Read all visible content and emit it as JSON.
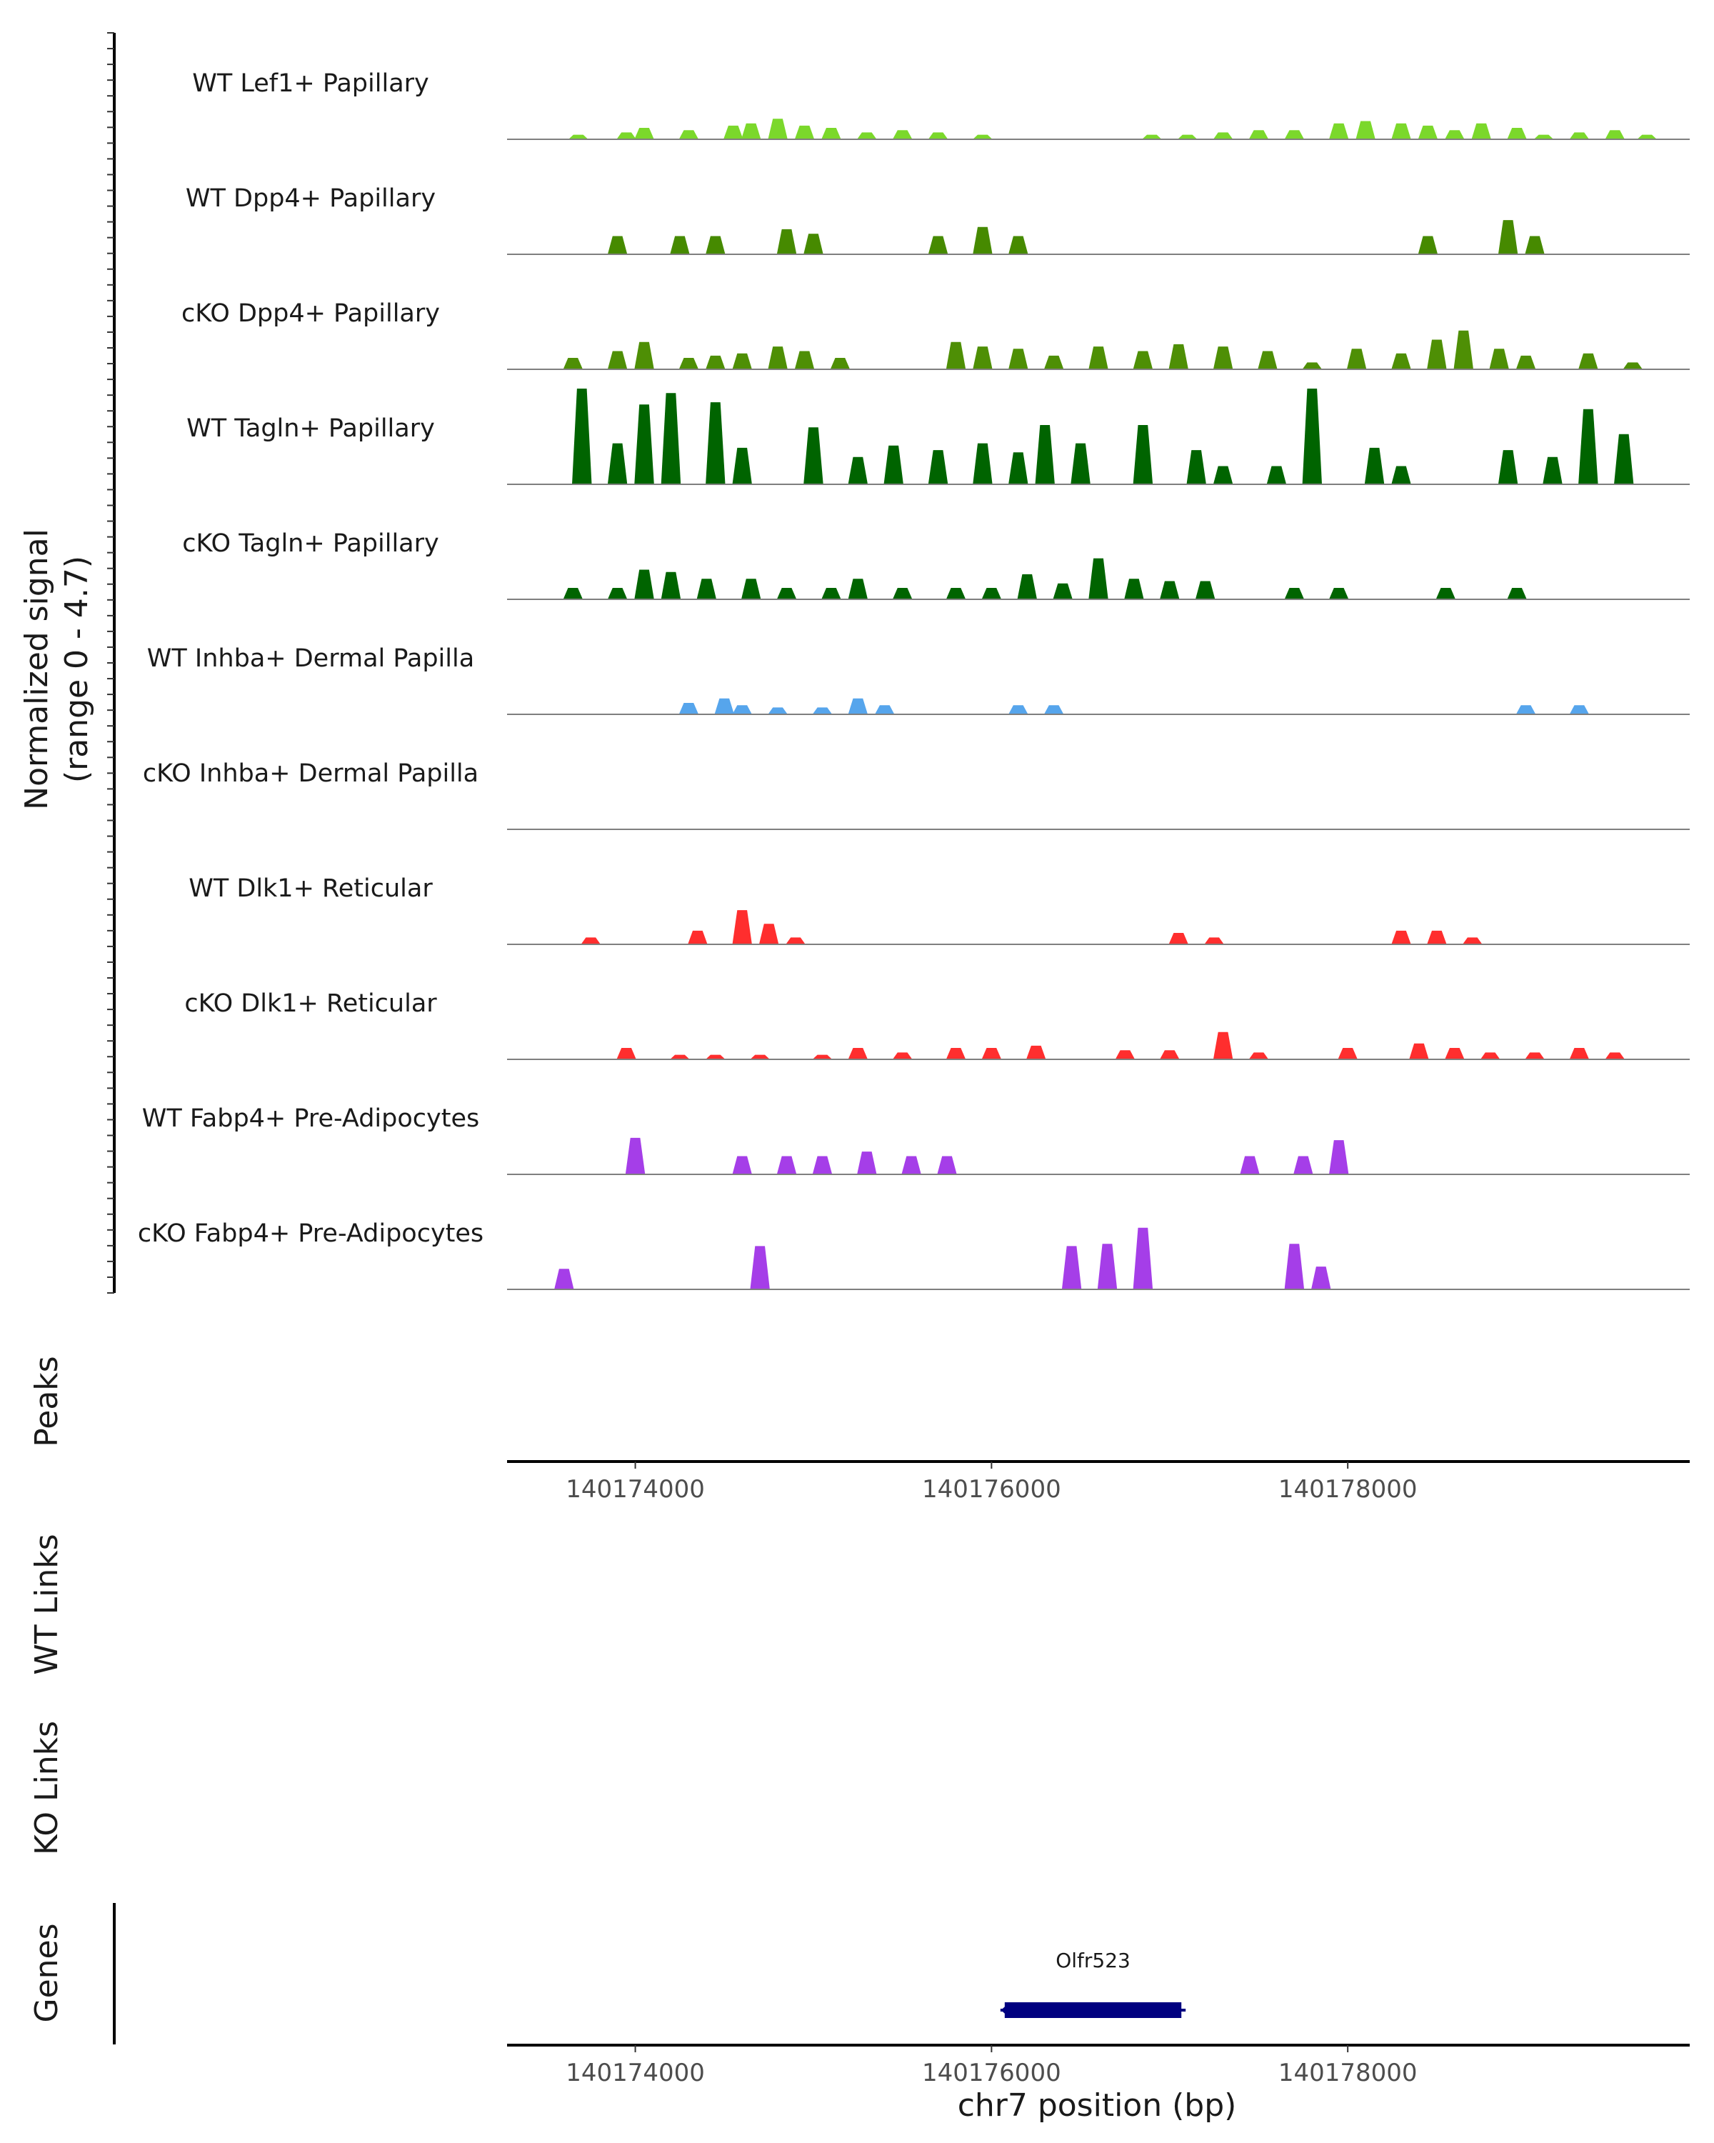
{
  "chart_data": {
    "type": "area",
    "title": "",
    "ylabel": "Normalized signal",
    "ylabel_range": "(range 0 - 4.7)",
    "ylim": [
      0,
      4.7
    ],
    "xlim": [
      140173280,
      140179920
    ],
    "xlabel": "chr7 position (bp)",
    "x_ticks": [
      "140174000",
      "140176000",
      "140178000"
    ],
    "x_tick_values": [
      140174000,
      140176000,
      140178000
    ],
    "tracks": [
      {
        "name": "WT Lef1+ Papillary",
        "color": "#7bd82b",
        "bins": [
          [
            140173680,
            0.2
          ],
          [
            140173950,
            0.3
          ],
          [
            140174050,
            0.5
          ],
          [
            140174300,
            0.4
          ],
          [
            140174550,
            0.6
          ],
          [
            140174650,
            0.7
          ],
          [
            140174800,
            0.9
          ],
          [
            140174950,
            0.6
          ],
          [
            140175100,
            0.5
          ],
          [
            140175300,
            0.3
          ],
          [
            140175500,
            0.4
          ],
          [
            140175700,
            0.3
          ],
          [
            140175950,
            0.2
          ],
          [
            140176900,
            0.2
          ],
          [
            140177100,
            0.2
          ],
          [
            140177300,
            0.3
          ],
          [
            140177500,
            0.4
          ],
          [
            140177700,
            0.4
          ],
          [
            140177950,
            0.7
          ],
          [
            140178100,
            0.8
          ],
          [
            140178300,
            0.7
          ],
          [
            140178450,
            0.6
          ],
          [
            140178600,
            0.4
          ],
          [
            140178750,
            0.7
          ],
          [
            140178950,
            0.5
          ],
          [
            140179100,
            0.2
          ],
          [
            140179300,
            0.3
          ],
          [
            140179500,
            0.4
          ],
          [
            140179680,
            0.2
          ]
        ]
      },
      {
        "name": "WT Dpp4+ Papillary",
        "color": "#468a00",
        "bins": [
          [
            140173900,
            0.8
          ],
          [
            140174250,
            0.8
          ],
          [
            140174450,
            0.8
          ],
          [
            140174850,
            1.1
          ],
          [
            140175000,
            0.9
          ],
          [
            140175700,
            0.8
          ],
          [
            140175950,
            1.2
          ],
          [
            140176150,
            0.8
          ],
          [
            140178450,
            0.8
          ],
          [
            140178900,
            1.5
          ],
          [
            140179050,
            0.8
          ]
        ]
      },
      {
        "name": "cKO Dpp4+ Papillary",
        "color": "#4e8f05",
        "bins": [
          [
            140173650,
            0.5
          ],
          [
            140173900,
            0.8
          ],
          [
            140174050,
            1.2
          ],
          [
            140174300,
            0.5
          ],
          [
            140174450,
            0.6
          ],
          [
            140174600,
            0.7
          ],
          [
            140174800,
            1.0
          ],
          [
            140174950,
            0.8
          ],
          [
            140175150,
            0.5
          ],
          [
            140175800,
            1.2
          ],
          [
            140175950,
            1.0
          ],
          [
            140176150,
            0.9
          ],
          [
            140176350,
            0.6
          ],
          [
            140176600,
            1.0
          ],
          [
            140176850,
            0.8
          ],
          [
            140177050,
            1.1
          ],
          [
            140177300,
            1.0
          ],
          [
            140177550,
            0.8
          ],
          [
            140177800,
            0.3
          ],
          [
            140178050,
            0.9
          ],
          [
            140178300,
            0.7
          ],
          [
            140178500,
            1.3
          ],
          [
            140178650,
            1.7
          ],
          [
            140178850,
            0.9
          ],
          [
            140179000,
            0.6
          ],
          [
            140179350,
            0.7
          ],
          [
            140179600,
            0.3
          ]
        ]
      },
      {
        "name": "WT Tagln+ Papillary",
        "color": "#006400",
        "bins": [
          [
            140173700,
            4.2
          ],
          [
            140173900,
            1.8
          ],
          [
            140174050,
            3.5
          ],
          [
            140174200,
            4.0
          ],
          [
            140174450,
            3.6
          ],
          [
            140174600,
            1.6
          ],
          [
            140175000,
            2.5
          ],
          [
            140175250,
            1.2
          ],
          [
            140175450,
            1.7
          ],
          [
            140175700,
            1.5
          ],
          [
            140175950,
            1.8
          ],
          [
            140176150,
            1.4
          ],
          [
            140176300,
            2.6
          ],
          [
            140176500,
            1.8
          ],
          [
            140176850,
            2.6
          ],
          [
            140177150,
            1.5
          ],
          [
            140177300,
            0.8
          ],
          [
            140177600,
            0.8
          ],
          [
            140177800,
            4.2
          ],
          [
            140178150,
            1.6
          ],
          [
            140178300,
            0.8
          ],
          [
            140178900,
            1.5
          ],
          [
            140179150,
            1.2
          ],
          [
            140179350,
            3.3
          ],
          [
            140179550,
            2.2
          ]
        ]
      },
      {
        "name": "cKO Tagln+ Papillary",
        "color": "#006400",
        "bins": [
          [
            140173650,
            0.5
          ],
          [
            140173900,
            0.5
          ],
          [
            140174050,
            1.3
          ],
          [
            140174200,
            1.2
          ],
          [
            140174400,
            0.9
          ],
          [
            140174650,
            0.9
          ],
          [
            140174850,
            0.5
          ],
          [
            140175100,
            0.5
          ],
          [
            140175250,
            0.9
          ],
          [
            140175500,
            0.5
          ],
          [
            140175800,
            0.5
          ],
          [
            140176000,
            0.5
          ],
          [
            140176200,
            1.1
          ],
          [
            140176400,
            0.7
          ],
          [
            140176600,
            1.8
          ],
          [
            140176800,
            0.9
          ],
          [
            140177000,
            0.8
          ],
          [
            140177200,
            0.8
          ],
          [
            140177700,
            0.5
          ],
          [
            140177950,
            0.5
          ],
          [
            140178550,
            0.5
          ],
          [
            140178950,
            0.5
          ]
        ]
      },
      {
        "name": "WT Inhba+ Dermal Papilla",
        "color": "#56a5ec",
        "bins": [
          [
            140174300,
            0.5
          ],
          [
            140174500,
            0.7
          ],
          [
            140174600,
            0.4
          ],
          [
            140174800,
            0.3
          ],
          [
            140175050,
            0.3
          ],
          [
            140175250,
            0.7
          ],
          [
            140175400,
            0.4
          ],
          [
            140176150,
            0.4
          ],
          [
            140176350,
            0.4
          ],
          [
            140179000,
            0.4
          ],
          [
            140179300,
            0.4
          ]
        ]
      },
      {
        "name": "cKO Inhba+ Dermal Papilla",
        "color": "#56a5ec",
        "bins": []
      },
      {
        "name": "WT Dlk1+ Reticular",
        "color": "#ff2e2e",
        "bins": [
          [
            140173750,
            0.3
          ],
          [
            140174350,
            0.6
          ],
          [
            140174600,
            1.5
          ],
          [
            140174750,
            0.9
          ],
          [
            140174900,
            0.3
          ],
          [
            140177050,
            0.5
          ],
          [
            140177250,
            0.3
          ],
          [
            140178300,
            0.6
          ],
          [
            140178500,
            0.6
          ],
          [
            140178700,
            0.3
          ]
        ]
      },
      {
        "name": "cKO Dlk1+ Reticular",
        "color": "#ff2e2e",
        "bins": [
          [
            140173950,
            0.5
          ],
          [
            140174250,
            0.2
          ],
          [
            140174450,
            0.2
          ],
          [
            140174700,
            0.2
          ],
          [
            140175050,
            0.2
          ],
          [
            140175250,
            0.5
          ],
          [
            140175500,
            0.3
          ],
          [
            140175800,
            0.5
          ],
          [
            140176000,
            0.5
          ],
          [
            140176250,
            0.6
          ],
          [
            140176750,
            0.4
          ],
          [
            140177000,
            0.4
          ],
          [
            140177300,
            1.2
          ],
          [
            140177500,
            0.3
          ],
          [
            140178000,
            0.5
          ],
          [
            140178400,
            0.7
          ],
          [
            140178600,
            0.5
          ],
          [
            140178800,
            0.3
          ],
          [
            140179050,
            0.3
          ],
          [
            140179300,
            0.5
          ],
          [
            140179500,
            0.3
          ]
        ]
      },
      {
        "name": "WT Fabp4+ Pre-Adipocytes",
        "color": "#a53ee8",
        "bins": [
          [
            140174000,
            1.6
          ],
          [
            140174600,
            0.8
          ],
          [
            140174850,
            0.8
          ],
          [
            140175050,
            0.8
          ],
          [
            140175300,
            1.0
          ],
          [
            140175550,
            0.8
          ],
          [
            140175750,
            0.8
          ],
          [
            140177450,
            0.8
          ],
          [
            140177750,
            0.8
          ],
          [
            140177950,
            1.5
          ]
        ]
      },
      {
        "name": "cKO Fabp4+ Pre-Adipocytes",
        "color": "#a53ee8",
        "bins": [
          [
            140173600,
            0.9
          ],
          [
            140174700,
            1.9
          ],
          [
            140176450,
            1.9
          ],
          [
            140176650,
            2.0
          ],
          [
            140176850,
            2.7
          ],
          [
            140177700,
            2.0
          ],
          [
            140177850,
            1.0
          ]
        ]
      }
    ],
    "side_labels": {
      "peaks": "Peaks",
      "wt_links": "WT Links",
      "ko_links": "KO Links",
      "genes": "Genes"
    },
    "genes": [
      {
        "name": "Olfr523",
        "start": 140176050,
        "end": 140177090,
        "strand": "-",
        "color": "#000080"
      }
    ]
  }
}
